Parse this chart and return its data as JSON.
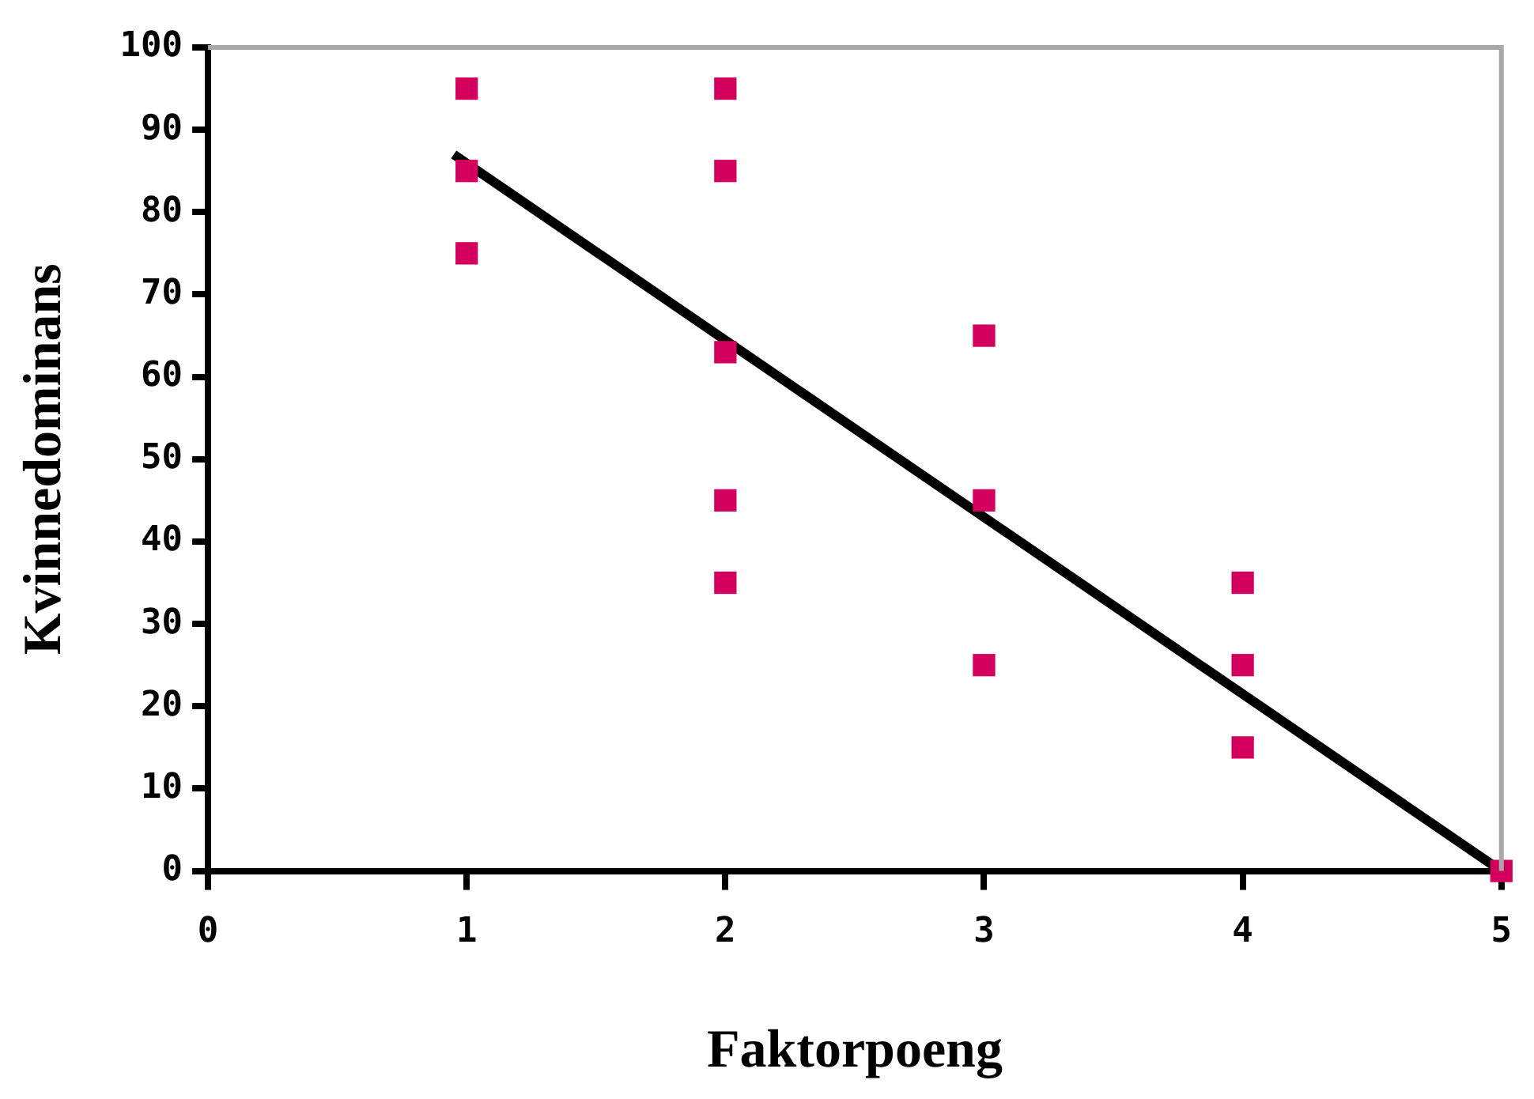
{
  "chart_data": {
    "type": "scatter",
    "xlabel": "Faktorpoeng",
    "ylabel": "Kvinnedominans",
    "xlim": [
      0,
      5
    ],
    "xticks": [
      0,
      1,
      2,
      3,
      4,
      5
    ],
    "ylim": [
      0,
      100
    ],
    "yticks": [
      0,
      10,
      20,
      30,
      40,
      50,
      60,
      70,
      80,
      90,
      100
    ],
    "grid": false,
    "legend": false,
    "marker": "square",
    "series": [
      {
        "type": "scatter",
        "color": "#d4005e",
        "x": [
          1,
          1,
          1,
          2,
          2,
          2,
          2,
          2,
          3,
          3,
          3,
          4,
          4,
          4,
          5
        ],
        "values": [
          95,
          85,
          75,
          95,
          85,
          63,
          45,
          35,
          65,
          45,
          25,
          35,
          25,
          15,
          0
        ]
      },
      {
        "type": "line",
        "color": "#000000",
        "x": [
          0.95,
          5
        ],
        "values": [
          87,
          0
        ],
        "marker": "none",
        "line_style": "solid"
      }
    ]
  }
}
